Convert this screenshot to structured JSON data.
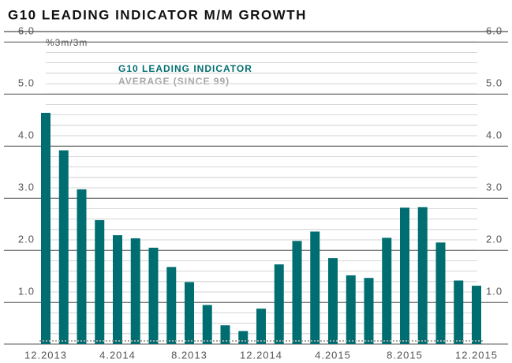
{
  "chart_data": {
    "type": "bar",
    "title": "G10 LEADING INDICATOR M/M GROWTH",
    "unit_label": "%3m/3m",
    "categories": [
      "12.2013",
      null,
      null,
      null,
      "4.2014",
      null,
      null,
      null,
      "8.2013",
      null,
      null,
      null,
      "12.2014",
      null,
      null,
      null,
      "4.2015",
      null,
      null,
      null,
      "8.2015",
      null,
      null,
      null,
      "12.2015"
    ],
    "series": [
      {
        "name": "G10 LEADING INDICATOR",
        "color": "#006e70",
        "values": [
          4.64,
          3.92,
          3.17,
          2.58,
          2.29,
          2.23,
          2.05,
          1.68,
          1.39,
          0.95,
          0.56,
          0.45,
          0.88,
          1.73,
          2.18,
          2.36,
          1.85,
          1.52,
          1.47,
          2.24,
          2.82,
          2.83,
          2.15,
          1.42,
          1.32
        ]
      }
    ],
    "average": {
      "name": "AVERAGE (SINCE 99)",
      "color": "#a6a6a6",
      "value": 0.26
    },
    "ylim": [
      0.2,
      6.2
    ],
    "yticks": [
      {
        "value": 1,
        "label": "1.0"
      },
      {
        "value": 2,
        "label": "2.0"
      },
      {
        "value": 3,
        "label": "3.0"
      },
      {
        "value": 4,
        "label": "4.0"
      },
      {
        "value": 5,
        "label": "5.0"
      },
      {
        "value": 6,
        "label": "6.0"
      }
    ],
    "grid": true
  }
}
